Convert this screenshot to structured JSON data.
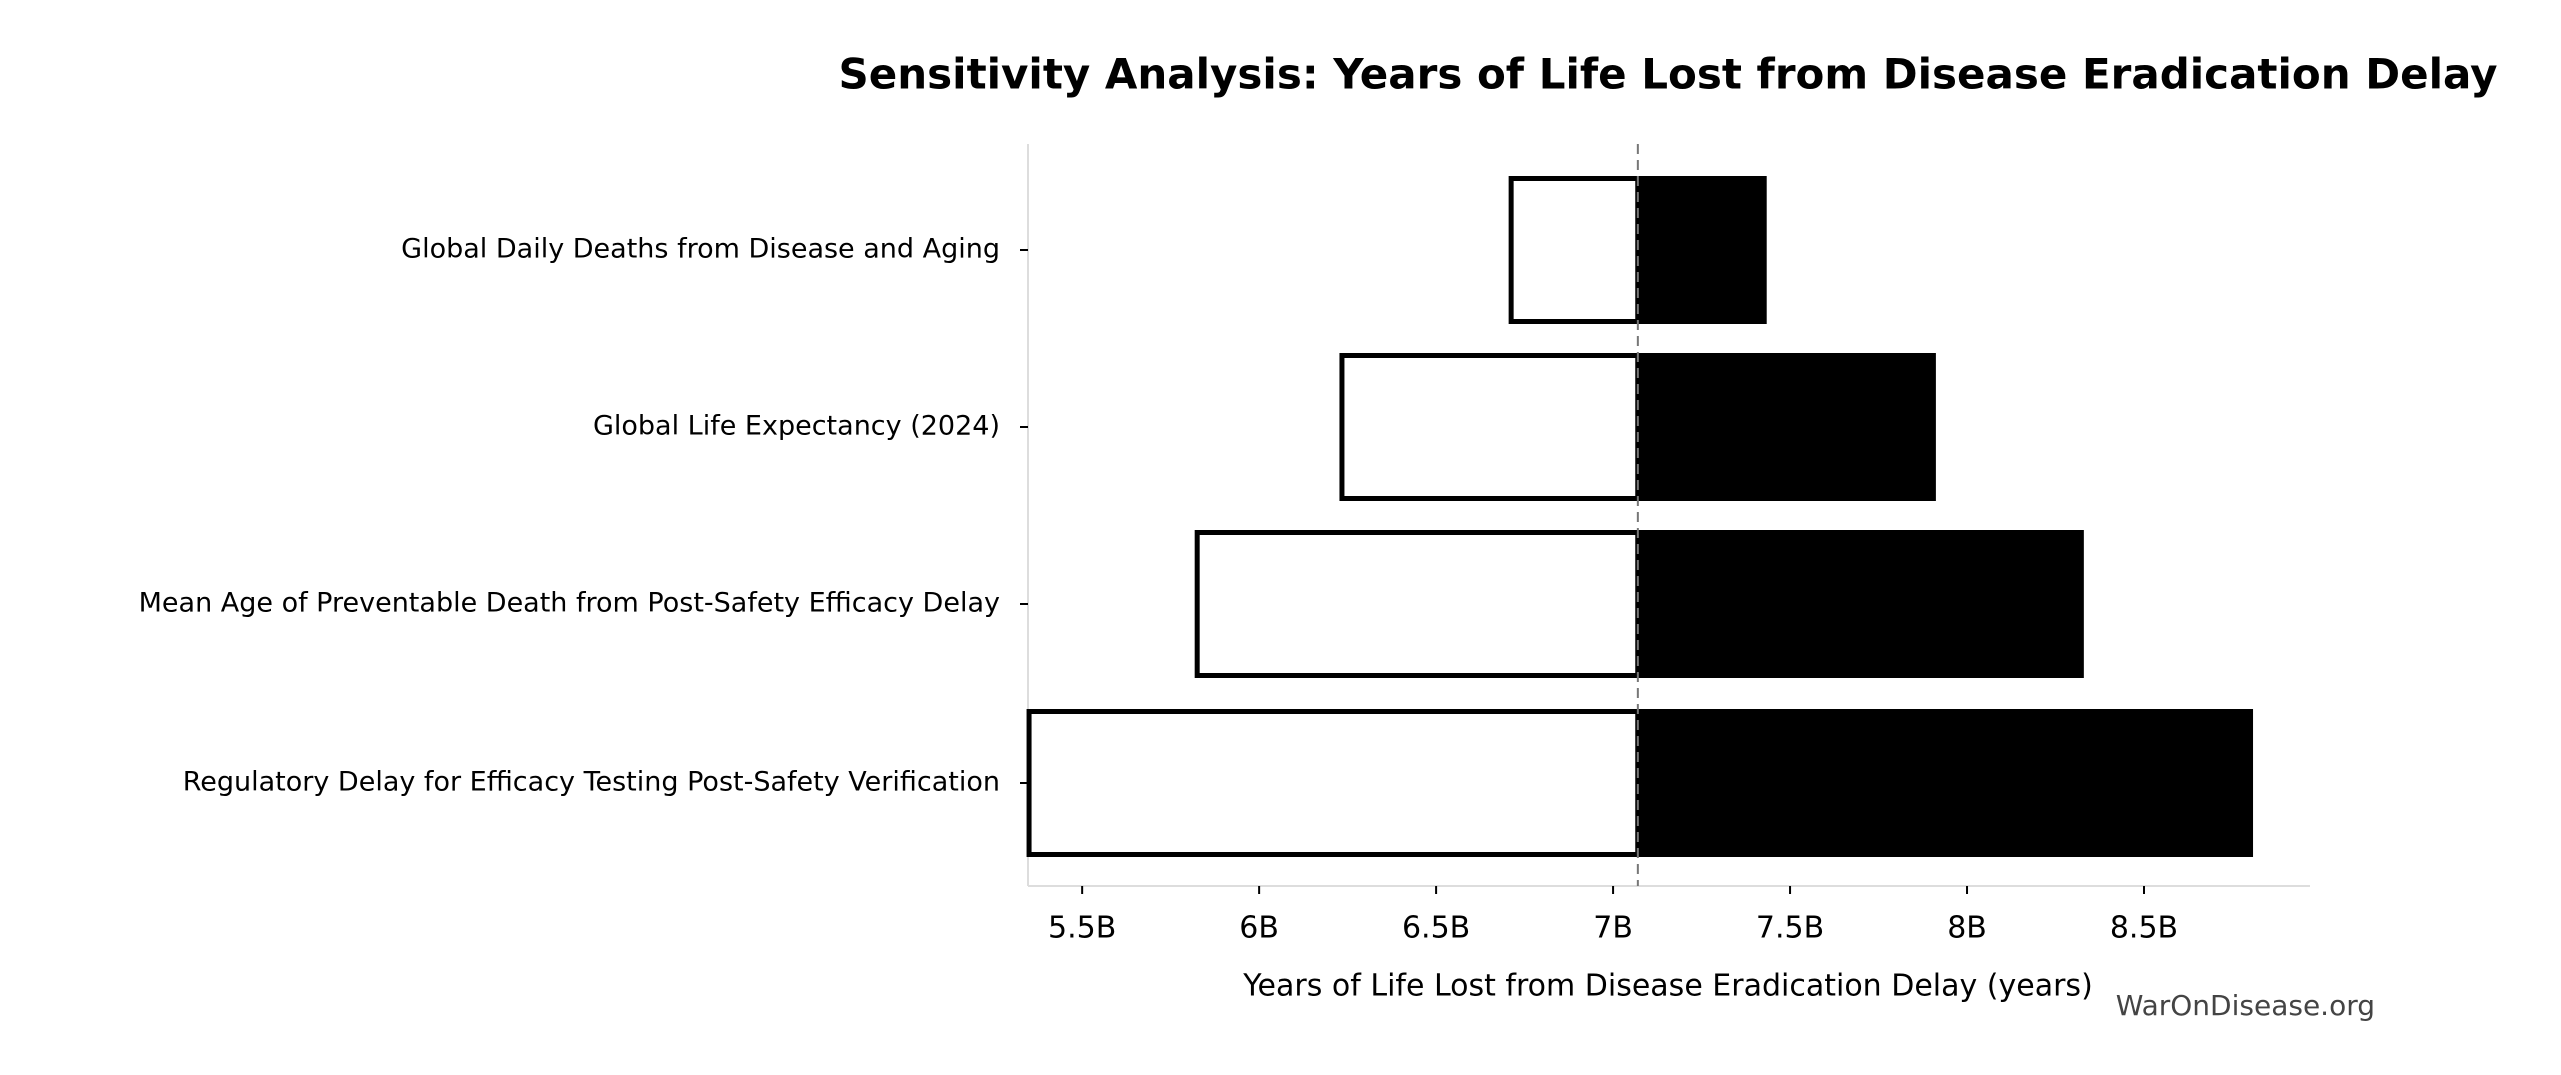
{
  "chart_data": {
    "type": "tornado",
    "title": "Sensitivity Analysis: Years of Life Lost from Disease Eradication Delay",
    "xlabel": "Years of Life Lost from Disease Eradication Delay (years)",
    "watermark": "WarOnDisease.org",
    "categories": [
      "Global Daily Deaths from Disease and Aging",
      "Global Life Expectancy (2024)",
      "Mean Age of Preventable Death from Post-Safety Efficacy Delay",
      "Regulatory Delay for Efficacy Testing Post-Safety Verification"
    ],
    "baseline": 7070000000,
    "series": [
      {
        "color": "#ffffff",
        "values": [
          6712000000,
          6234000000,
          5825000000,
          5350000000
        ]
      },
      {
        "color": "#000000",
        "values": [
          7427000000,
          7905000000,
          8323000000,
          8801000000
        ]
      }
    ],
    "xlim": [
      5347000000,
      8969000000
    ],
    "xticks": [
      {
        "value": 5500000000,
        "label": "5.5B"
      },
      {
        "value": 6000000000,
        "label": "6B"
      },
      {
        "value": 6500000000,
        "label": "6.5B"
      },
      {
        "value": 7000000000,
        "label": "7B"
      },
      {
        "value": 7500000000,
        "label": "7.5B"
      },
      {
        "value": 8000000000,
        "label": "8B"
      },
      {
        "value": 8500000000,
        "label": "8.5B"
      }
    ]
  }
}
